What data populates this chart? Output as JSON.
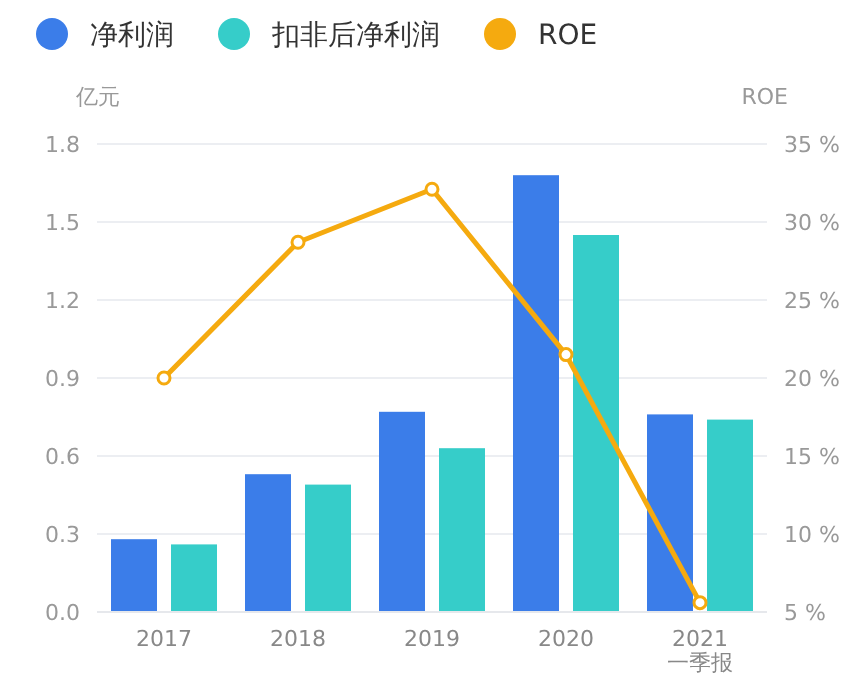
{
  "chart_data": {
    "type": "bar",
    "categories": [
      "2017",
      "2018",
      "2019",
      "2020",
      "2021\n一季报"
    ],
    "ylabel": "亿元",
    "y2label": "ROE",
    "legend": "top left",
    "grid": "y",
    "ylim": [
      0,
      1.8
    ],
    "yticks": [
      {
        "value": 0,
        "label": "0.0"
      },
      {
        "value": 0.3,
        "label": "0.3"
      },
      {
        "value": 0.6,
        "label": "0.6"
      },
      {
        "value": 0.9,
        "label": "0.9"
      },
      {
        "value": 1.2,
        "label": "1.2"
      },
      {
        "value": 1.5,
        "label": "1.5"
      },
      {
        "value": 1.8,
        "label": "1.8"
      }
    ],
    "y2lim": [
      5,
      35
    ],
    "y2ticks": [
      {
        "value": 5,
        "label": "5 %"
      },
      {
        "value": 10,
        "label": "10 %"
      },
      {
        "value": 15,
        "label": "15 %"
      },
      {
        "value": 20,
        "label": "20 %"
      },
      {
        "value": 25,
        "label": "25 %"
      },
      {
        "value": 30,
        "label": "30 %"
      },
      {
        "value": 35,
        "label": "35 %"
      }
    ],
    "series": [
      {
        "name": "净利润",
        "color": "#3b7de9",
        "values": [
          0.28,
          0.53,
          0.77,
          1.68,
          0.76
        ]
      },
      {
        "name": "扣非后净利润",
        "color": "#36cdc9",
        "values": [
          0.26,
          0.49,
          0.63,
          1.45,
          0.74
        ]
      },
      {
        "name": "ROE",
        "type": "line",
        "axis": "y2",
        "marker": "circle",
        "color": "#f5aa0f",
        "values": [
          20.0,
          28.7,
          32.1,
          21.5,
          5.6
        ]
      }
    ]
  }
}
